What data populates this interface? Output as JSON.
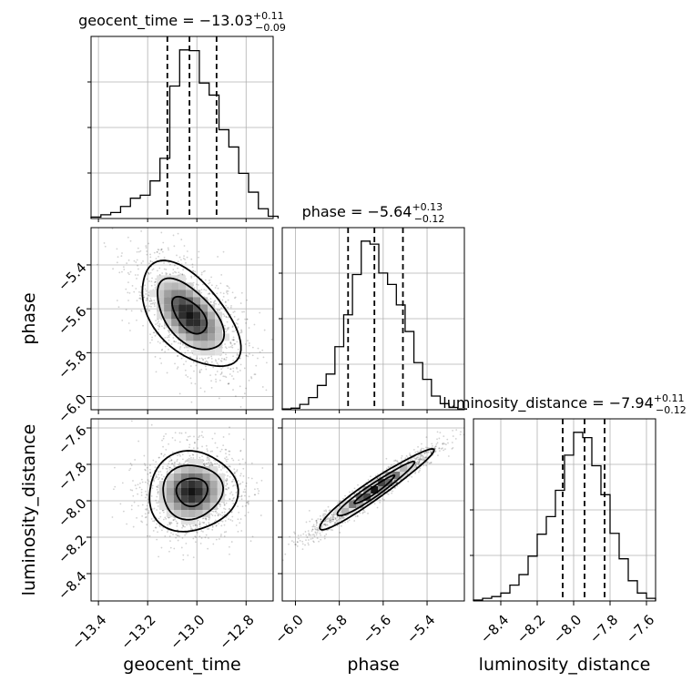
{
  "chart_data": {
    "type": "corner",
    "parameters": [
      {
        "name": "geocent_time",
        "xlabel": "geocent_time",
        "range": [
          -13.43,
          -12.69
        ],
        "ticks": [
          -13.4,
          -13.2,
          -13.0,
          -12.8
        ],
        "tick_labels": [
          "−13.4",
          "−13.2",
          "−13.0",
          "−12.8"
        ],
        "title_main": "geocent_time = −13.03",
        "title_sup": "+0.11",
        "title_sub": "−0.09",
        "median": -13.03,
        "q_low": -13.12,
        "q_high": -12.92,
        "hist_x": [
          -13.43,
          -13.39,
          -13.35,
          -13.31,
          -13.27,
          -13.23,
          -13.19,
          -13.15,
          -13.11,
          -13.07,
          -13.03,
          -12.99,
          -12.95,
          -12.91,
          -12.87,
          -12.83,
          -12.79,
          -12.75,
          -12.71
        ],
        "hist_y": [
          2,
          5,
          8,
          16,
          27,
          31,
          50,
          80,
          176,
          224,
          223,
          180,
          164,
          118,
          95,
          60,
          35,
          13,
          3
        ]
      },
      {
        "name": "phase",
        "xlabel": "phase",
        "ylabel": "phase",
        "range": [
          -6.06,
          -5.23
        ],
        "ticks": [
          -6.0,
          -5.8,
          -5.6,
          -5.4
        ],
        "tick_labels": [
          "−6.0",
          "−5.8",
          "−5.6",
          "−5.4"
        ],
        "title_main": "phase = −5.64",
        "title_sup": "+0.13",
        "title_sub": "−0.12",
        "median": -5.64,
        "q_low": -5.76,
        "q_high": -5.51,
        "hist_x": [
          -6.06,
          -6.02,
          -5.98,
          -5.94,
          -5.9,
          -5.86,
          -5.82,
          -5.78,
          -5.74,
          -5.7,
          -5.66,
          -5.62,
          -5.58,
          -5.54,
          -5.5,
          -5.46,
          -5.42,
          -5.38,
          -5.34,
          -5.3,
          -5.26
        ],
        "hist_y": [
          1,
          2,
          7,
          16,
          32,
          47,
          83,
          125,
          178,
          222,
          218,
          180,
          165,
          138,
          103,
          62,
          40,
          18,
          8,
          3,
          1
        ]
      },
      {
        "name": "luminosity_distance",
        "xlabel": "luminosity_distance",
        "ylabel": "luminosity_distance",
        "range": [
          -8.55,
          -7.55
        ],
        "ticks": [
          -8.4,
          -8.2,
          -8.0,
          -7.8,
          -7.6
        ],
        "tick_labels": [
          "−8.4",
          "−8.2",
          "−8.0",
          "−7.8",
          "−7.6"
        ],
        "title_main": "luminosity_distance = −7.94",
        "title_sup": "+0.11",
        "title_sub": "−0.12",
        "median": -7.94,
        "q_low": -8.06,
        "q_high": -7.83,
        "hist_x": [
          -8.55,
          -8.5,
          -8.45,
          -8.4,
          -8.35,
          -8.3,
          -8.25,
          -8.2,
          -8.15,
          -8.1,
          -8.05,
          -8.0,
          -7.95,
          -7.9,
          -7.85,
          -7.8,
          -7.75,
          -7.7,
          -7.65,
          -7.6
        ],
        "hist_y": [
          1,
          3,
          5,
          9,
          18,
          30,
          51,
          76,
          96,
          126,
          166,
          192,
          186,
          154,
          121,
          77,
          48,
          23,
          9,
          3
        ]
      }
    ],
    "pairs": [
      {
        "x": "geocent_time",
        "y": "phase",
        "correlation": "negative",
        "center": [
          -13.03,
          -5.63
        ],
        "sigma": [
          0.1,
          0.12
        ],
        "rho": -0.55
      },
      {
        "x": "geocent_time",
        "y": "luminosity_distance",
        "correlation": "none",
        "center": [
          -13.02,
          -7.95
        ],
        "sigma": [
          0.09,
          0.11
        ],
        "rho": 0.05
      },
      {
        "x": "phase",
        "y": "luminosity_distance",
        "correlation": "strong positive",
        "center": [
          -5.64,
          -7.94
        ],
        "sigma": [
          0.13,
          0.11
        ],
        "rho": 0.96
      }
    ],
    "grid": true,
    "contour_levels": 3
  }
}
